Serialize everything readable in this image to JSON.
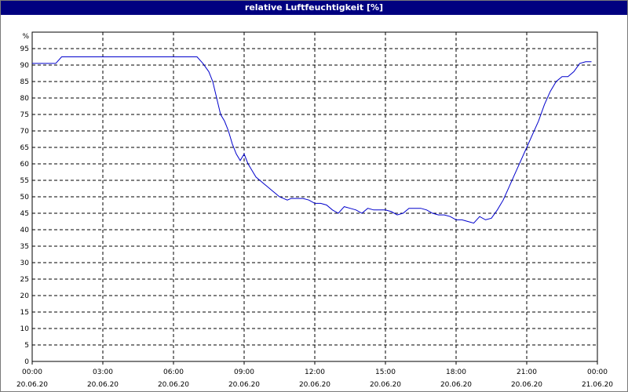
{
  "chart_data": {
    "type": "line",
    "title": "relative Luftfeuchtigkeit [%]",
    "ylabel": "%",
    "xlabel": "",
    "ylim": [
      0,
      100
    ],
    "yticks": [
      0,
      5,
      10,
      15,
      20,
      25,
      30,
      35,
      40,
      45,
      50,
      55,
      60,
      65,
      70,
      75,
      80,
      85,
      90,
      95
    ],
    "xticks": [
      {
        "time": "00:00",
        "date": "20.06.20"
      },
      {
        "time": "03:00",
        "date": "20.06.20"
      },
      {
        "time": "06:00",
        "date": "20.06.20"
      },
      {
        "time": "09:00",
        "date": "20.06.20"
      },
      {
        "time": "12:00",
        "date": "20.06.20"
      },
      {
        "time": "15:00",
        "date": "20.06.20"
      },
      {
        "time": "18:00",
        "date": "20.06.20"
      },
      {
        "time": "21:00",
        "date": "20.06.20"
      },
      {
        "time": "00:00",
        "date": "21.06.20"
      }
    ],
    "grid": true,
    "line_color": "#0000cc",
    "series": [
      {
        "x": [
          "00:00",
          "01:00",
          "01:15",
          "07:00",
          "07:15",
          "07:30",
          "07:40",
          "07:50",
          "08:00",
          "08:10",
          "08:20",
          "08:30",
          "08:40",
          "08:50",
          "09:00",
          "09:10",
          "09:20",
          "09:30",
          "09:40",
          "09:50",
          "10:00",
          "10:10",
          "10:20",
          "10:30",
          "10:40",
          "10:50",
          "11:00",
          "11:15",
          "11:30",
          "11:45",
          "12:00",
          "12:15",
          "12:30",
          "12:45",
          "13:00",
          "13:15",
          "13:30",
          "13:45",
          "14:00",
          "14:15",
          "14:30",
          "14:45",
          "15:00",
          "15:15",
          "15:30",
          "15:45",
          "16:00",
          "16:15",
          "16:30",
          "16:45",
          "17:00",
          "17:15",
          "17:30",
          "17:45",
          "18:00",
          "18:15",
          "18:30",
          "18:45",
          "19:00",
          "19:15",
          "19:30",
          "19:45",
          "20:00",
          "20:15",
          "20:30",
          "20:45",
          "21:00",
          "21:15",
          "21:30",
          "21:45",
          "22:00",
          "22:15",
          "22:30",
          "22:45",
          "23:00",
          "23:15",
          "23:30",
          "23:45"
        ],
        "values": [
          90.5,
          90.5,
          92.5,
          92.5,
          90.5,
          88,
          85,
          80,
          75,
          73,
          70,
          66,
          63,
          61,
          63,
          60,
          58,
          56,
          55,
          54,
          53,
          52,
          51,
          50,
          49.5,
          49,
          49.5,
          49.5,
          49.5,
          49,
          48,
          48,
          47.5,
          46,
          45,
          47,
          46.5,
          46,
          45,
          46.5,
          46,
          46,
          46,
          45.5,
          44.5,
          45,
          46.5,
          46.5,
          46.5,
          46,
          45,
          44.5,
          44.5,
          44,
          43,
          43,
          42.5,
          42,
          44,
          43,
          43.5,
          46,
          49,
          53,
          57,
          61,
          65,
          69,
          73,
          78,
          82,
          85,
          86.5,
          86.5,
          88,
          90.5,
          91,
          91
        ]
      }
    ]
  }
}
